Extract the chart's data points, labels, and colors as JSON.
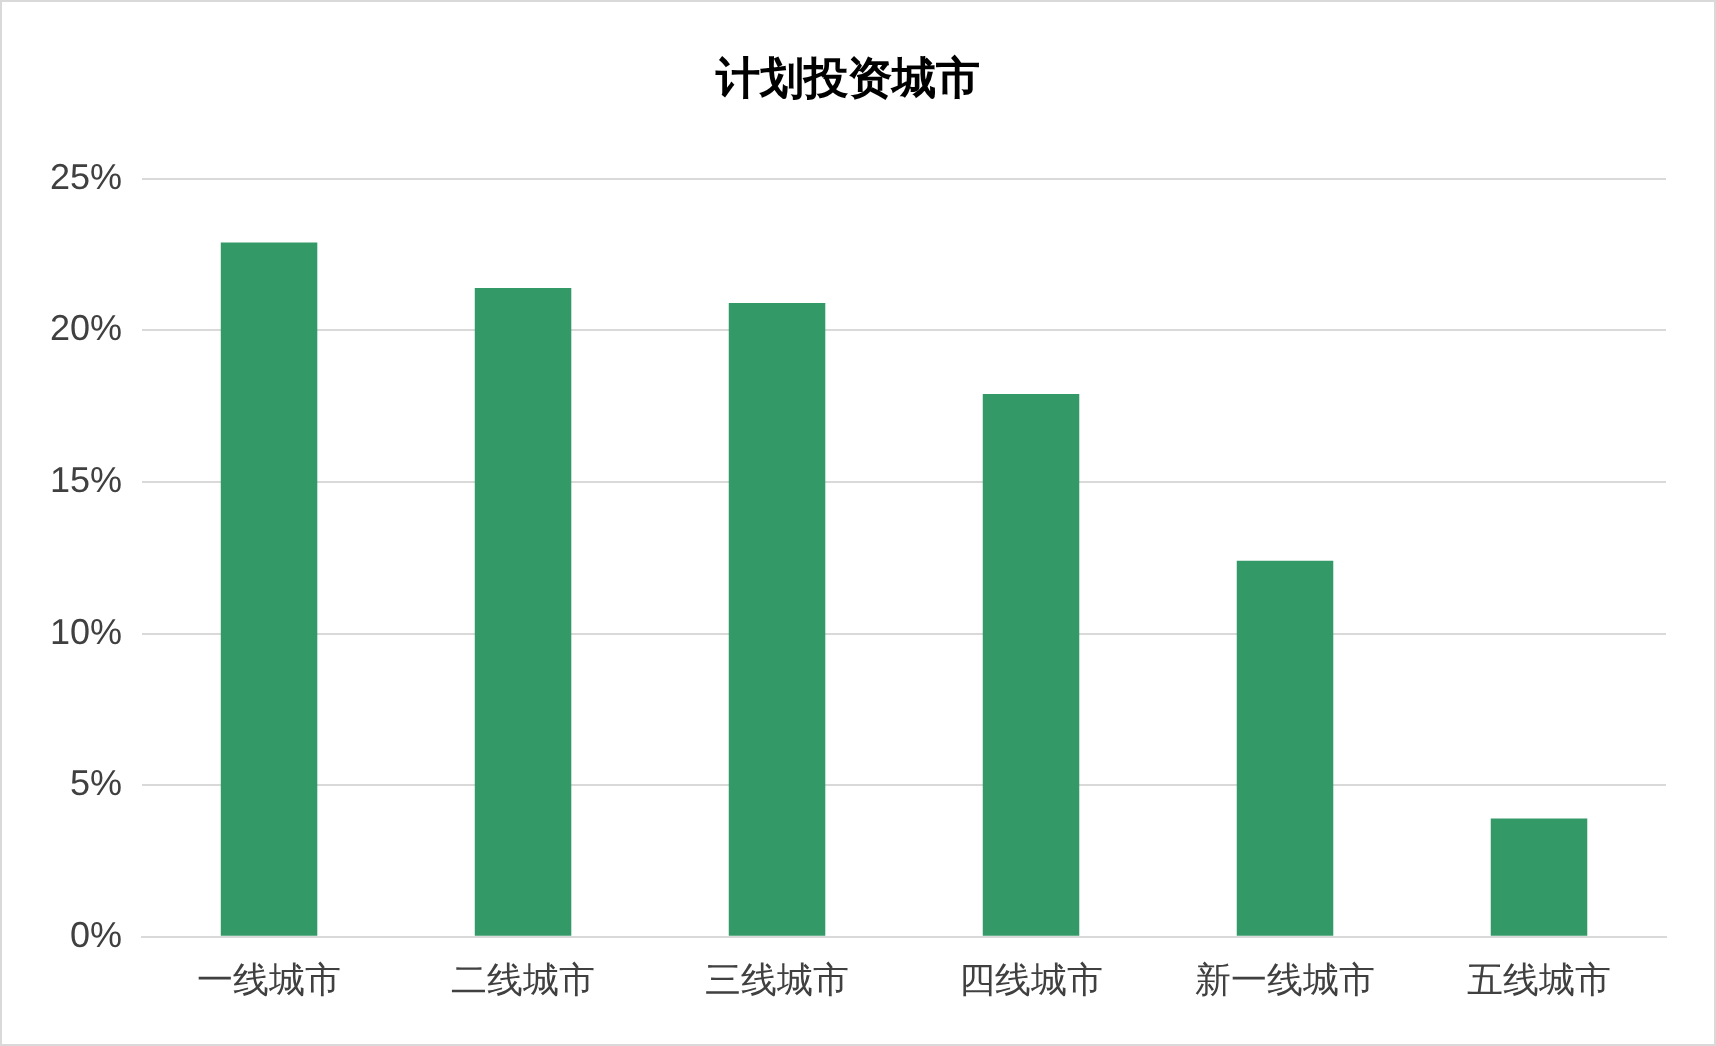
{
  "chart_data": {
    "type": "bar",
    "title": "计划投资城市",
    "categories": [
      "一线城市",
      "二线城市",
      "三线城市",
      "四线城市",
      "新一线城市",
      "五线城市"
    ],
    "values": [
      22.9,
      21.4,
      20.9,
      17.9,
      12.4,
      3.9
    ],
    "color": "#339966",
    "ylim": [
      0,
      25
    ],
    "yticks": [
      {
        "value": 0,
        "label": "0%"
      },
      {
        "value": 5,
        "label": "5%"
      },
      {
        "value": 10,
        "label": "10%"
      },
      {
        "value": 15,
        "label": "15%"
      },
      {
        "value": 20,
        "label": "20%"
      },
      {
        "value": 25,
        "label": "25%"
      }
    ],
    "grid": "y",
    "legend": false
  }
}
